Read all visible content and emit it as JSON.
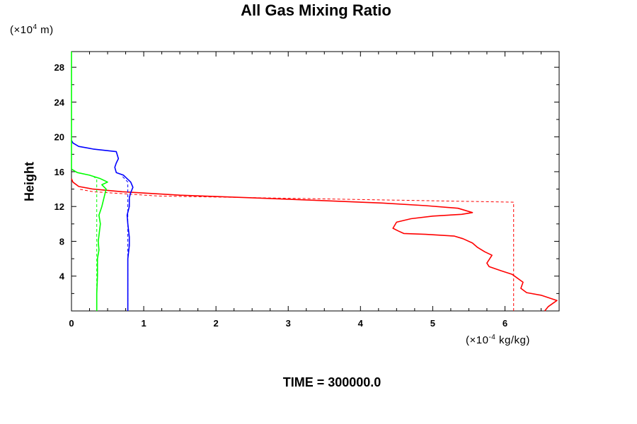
{
  "page": {
    "title": "All Gas Mixing Ratio",
    "footer": "TIME = 300000.0",
    "y_axis_label": "Height",
    "y_unit_prefix": "(×10",
    "y_unit_exp": "4",
    "y_unit_suffix": " m)",
    "x_unit_prefix": "(×10",
    "x_unit_exp": "-4",
    "x_unit_suffix": " kg/kg)"
  },
  "chart_data": {
    "type": "line",
    "title": "All Gas Mixing Ratio",
    "xlabel": "",
    "ylabel": "Height",
    "x_unit": "(×10^-4 kg/kg)",
    "y_unit": "(×10^4 m)",
    "xlim": [
      0,
      6.75
    ],
    "ylim": [
      0,
      29.8
    ],
    "x_ticks": [
      0,
      1,
      2,
      3,
      4,
      5,
      6
    ],
    "y_ticks": [
      4,
      8,
      12,
      16,
      20,
      24,
      28
    ],
    "grid": false,
    "legend": "none",
    "series": [
      {
        "color": "#ff0000",
        "style": "solid",
        "points": [
          [
            6.55,
            0
          ],
          [
            6.6,
            0.5
          ],
          [
            6.72,
            1.2
          ],
          [
            6.5,
            1.8
          ],
          [
            6.3,
            2.1
          ],
          [
            6.22,
            2.6
          ],
          [
            6.25,
            3.3
          ],
          [
            6.1,
            4.2
          ],
          [
            5.95,
            4.6
          ],
          [
            5.78,
            5.1
          ],
          [
            5.75,
            5.5
          ],
          [
            5.82,
            6.4
          ],
          [
            5.72,
            6.8
          ],
          [
            5.62,
            7.3
          ],
          [
            5.55,
            7.8
          ],
          [
            5.42,
            8.3
          ],
          [
            5.3,
            8.6
          ],
          [
            4.9,
            8.8
          ],
          [
            4.6,
            8.9
          ],
          [
            4.52,
            9.2
          ],
          [
            4.45,
            9.5
          ],
          [
            4.5,
            10.2
          ],
          [
            4.7,
            10.6
          ],
          [
            5.0,
            10.9
          ],
          [
            5.4,
            11.1
          ],
          [
            5.55,
            11.3
          ],
          [
            5.35,
            11.8
          ],
          [
            4.9,
            12.1
          ],
          [
            4.3,
            12.4
          ],
          [
            3.4,
            12.7
          ],
          [
            2.5,
            13.0
          ],
          [
            1.5,
            13.3
          ],
          [
            0.7,
            13.7
          ],
          [
            0.3,
            14.0
          ],
          [
            0.1,
            14.3
          ],
          [
            0.02,
            14.8
          ],
          [
            0,
            15.2
          ]
        ]
      },
      {
        "color": "#ff0000",
        "style": "dashed",
        "points": [
          [
            6.12,
            0
          ],
          [
            6.12,
            12.5
          ],
          [
            1.2,
            13.2
          ],
          [
            0.3,
            13.7
          ],
          [
            0.1,
            14.0
          ]
        ]
      },
      {
        "color": "#0000ff",
        "style": "solid",
        "points": [
          [
            0.78,
            0
          ],
          [
            0.78,
            3.0
          ],
          [
            0.78,
            6.0
          ],
          [
            0.8,
            7.5
          ],
          [
            0.8,
            8.5
          ],
          [
            0.78,
            10.0
          ],
          [
            0.77,
            11.0
          ],
          [
            0.8,
            12.0
          ],
          [
            0.8,
            13.0
          ],
          [
            0.82,
            13.6
          ],
          [
            0.85,
            14.2
          ],
          [
            0.82,
            14.8
          ],
          [
            0.72,
            15.6
          ],
          [
            0.62,
            15.9
          ],
          [
            0.6,
            16.5
          ],
          [
            0.62,
            17.0
          ],
          [
            0.65,
            17.5
          ],
          [
            0.62,
            18.3
          ],
          [
            0.3,
            18.6
          ],
          [
            0.1,
            18.9
          ],
          [
            0.02,
            19.3
          ],
          [
            0,
            19.6
          ]
        ]
      },
      {
        "color": "#0000ff",
        "style": "dashed",
        "points": [
          [
            0.78,
            0
          ],
          [
            0.78,
            14.8
          ],
          [
            0.7,
            15.5
          ]
        ]
      },
      {
        "color": "#00ff00",
        "style": "solid",
        "points": [
          [
            0.35,
            0
          ],
          [
            0.35,
            2.0
          ],
          [
            0.36,
            4.0
          ],
          [
            0.36,
            6.0
          ],
          [
            0.38,
            7.0
          ],
          [
            0.37,
            8.0
          ],
          [
            0.4,
            10.0
          ],
          [
            0.38,
            11.0
          ],
          [
            0.42,
            12.0
          ],
          [
            0.45,
            13.0
          ],
          [
            0.48,
            14.0
          ],
          [
            0.42,
            14.5
          ],
          [
            0.5,
            14.8
          ],
          [
            0.4,
            15.2
          ],
          [
            0.25,
            15.6
          ],
          [
            0.08,
            15.9
          ],
          [
            0,
            16.3
          ]
        ]
      },
      {
        "color": "#00ff00",
        "style": "dashed",
        "points": [
          [
            0.35,
            0
          ],
          [
            0.35,
            15.1
          ],
          [
            0.3,
            15.5
          ]
        ]
      },
      {
        "color": "#00ff00",
        "style": "solid",
        "points": [
          [
            0,
            16.3
          ],
          [
            0,
            29.8
          ]
        ]
      }
    ]
  }
}
